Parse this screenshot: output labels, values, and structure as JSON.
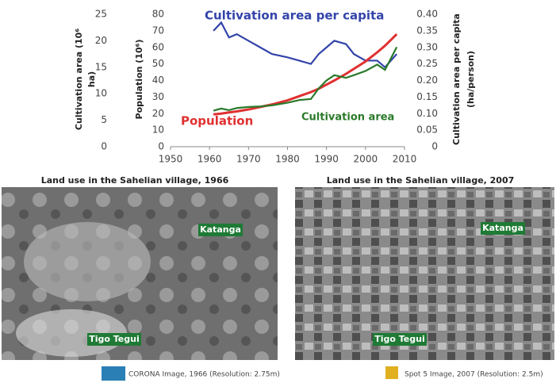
{
  "chart_data": {
    "type": "line",
    "x": [
      1961,
      1963,
      1965,
      1967,
      1970,
      1973,
      1976,
      1980,
      1983,
      1986,
      1988,
      1990,
      1992,
      1995,
      1997,
      2000,
      2003,
      2005,
      2008
    ],
    "series": [
      {
        "name": "Cultivation area per capita",
        "color": "#3344aa",
        "axis": "y2",
        "values": [
          0.35,
          0.375,
          0.33,
          0.34,
          0.32,
          0.3,
          0.28,
          0.27,
          0.26,
          0.25,
          0.28,
          0.3,
          0.32,
          0.31,
          0.28,
          0.26,
          0.26,
          0.24,
          0.28
        ]
      },
      {
        "name": "Population",
        "color": "#e03030",
        "axis": "y",
        "values": [
          19.5,
          20,
          20.7,
          21.3,
          22.5,
          24,
          25.5,
          28,
          30.5,
          33,
          35,
          37.5,
          40,
          44,
          47,
          51.5,
          57,
          61,
          68
        ]
      },
      {
        "name": "Cultivation area",
        "color": "#2a7a2a",
        "axis": "y3",
        "values": [
          6.8,
          7.2,
          6.9,
          7.3,
          7.5,
          7.6,
          7.8,
          8.3,
          8.8,
          9,
          11,
          12.5,
          13.5,
          13,
          13.5,
          14.3,
          15.5,
          14.5,
          18.8
        ]
      }
    ],
    "xlim": [
      1950,
      2010
    ],
    "xticks": [
      1950,
      1960,
      1970,
      1980,
      1990,
      2000,
      2010
    ],
    "ylim": [
      0,
      80
    ],
    "yticks": [
      0,
      10,
      20,
      30,
      40,
      50,
      60,
      70,
      80
    ],
    "ylabel": "Population (10⁶)",
    "y3lim": [
      0,
      25
    ],
    "y3ticks": [
      0,
      5,
      10,
      15,
      20,
      25
    ],
    "y3label": [
      "Cultivation area (10⁶",
      "ha)"
    ],
    "y2lim": [
      0,
      0.4
    ],
    "y2ticks": [
      0,
      {
        "value": 0.05,
        "label": "0.05"
      },
      {
        "value": 0.1,
        "label": "0.10"
      },
      {
        "value": 0.15,
        "label": "0.15"
      },
      {
        "value": 0.2,
        "label": "0.20"
      },
      {
        "value": 0.25,
        "label": "0.25"
      },
      {
        "value": 0.3,
        "label": "0.30"
      },
      {
        "value": 0.35,
        "label": "0.35"
      },
      {
        "value": 0.4,
        "label": "0.40"
      }
    ],
    "y2label": [
      "Cultivation area per capita",
      "(ha/person)"
    ]
  },
  "images": [
    {
      "title": "Land use in the Sahelian village, 1966",
      "places": [
        "Katanga",
        "Tigo Tegui"
      ],
      "caption": "CORONA Image, 1966 (Resolution: 2.75m)"
    },
    {
      "title": "Land use in the Sahelian village, 2007",
      "places": [
        "Katanga",
        "Tigo Tegui"
      ],
      "caption": "Spot 5 Image, 2007 (Resolution: 2.5m)"
    }
  ]
}
